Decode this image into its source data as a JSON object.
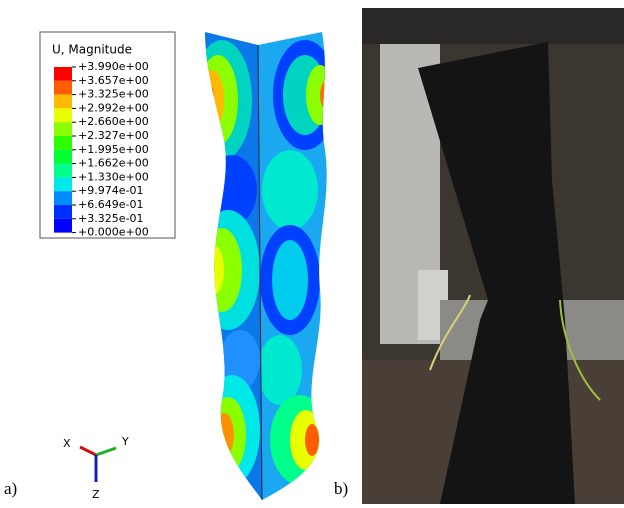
{
  "legend": {
    "title": "U, Magnitude",
    "entries": [
      "+3.990e+00",
      "+3.657e+00",
      "+3.325e+00",
      "+2.992e+00",
      "+2.660e+00",
      "+2.327e+00",
      "+1.995e+00",
      "+1.662e+00",
      "+1.330e+00",
      "+9.974e-01",
      "+6.649e-01",
      "+3.325e-01",
      "+0.000e+00"
    ],
    "band_colors": [
      "#ff0000",
      "#ff5d00",
      "#ffb900",
      "#e8ff00",
      "#8bff00",
      "#2eff00",
      "#00ff2e",
      "#00ff8b",
      "#00e8e8",
      "#008bff",
      "#002eff",
      "#0000ff"
    ]
  },
  "triad": {
    "x": "X",
    "y": "Y",
    "z": "Z"
  },
  "panels": {
    "a": "a)",
    "b": "b)"
  }
}
